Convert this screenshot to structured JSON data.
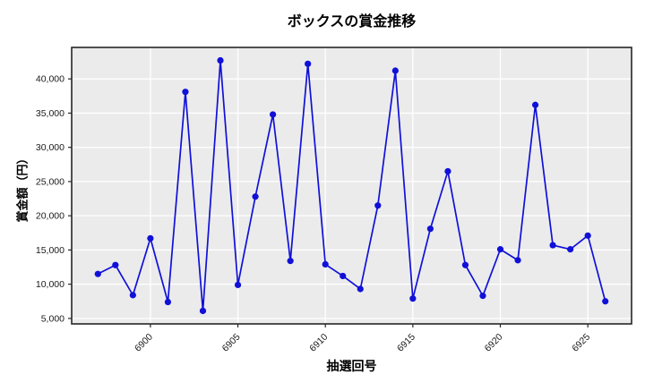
{
  "chart_data": {
    "type": "line",
    "title": "ボックスの賞金推移",
    "xlabel": "抽選回号",
    "ylabel": "賞金額（円）",
    "x": [
      6897,
      6898,
      6899,
      6900,
      6901,
      6902,
      6903,
      6904,
      6905,
      6906,
      6907,
      6908,
      6909,
      6910,
      6911,
      6912,
      6913,
      6914,
      6915,
      6916,
      6917,
      6918,
      6919,
      6920,
      6921,
      6922,
      6923,
      6924,
      6925,
      6926
    ],
    "values": [
      11500,
      12800,
      8400,
      16700,
      7400,
      38100,
      6100,
      42700,
      9900,
      22800,
      34800,
      13400,
      42200,
      12900,
      11200,
      9300,
      21500,
      41200,
      7900,
      18100,
      26500,
      12800,
      8300,
      15100,
      13500,
      36200,
      15700,
      15100,
      17100,
      7500
    ],
    "xticks": [
      6900,
      6905,
      6910,
      6915,
      6920,
      6925
    ],
    "yticks": [
      5000,
      10000,
      15000,
      20000,
      25000,
      30000,
      35000,
      40000
    ],
    "xlim": [
      6895.5,
      6927.5
    ],
    "ylim": [
      4200,
      44600
    ],
    "grid": true,
    "legend": "none",
    "colors": {
      "line": "#1010d9",
      "marker": "#1010d9",
      "plot_bg": "#ebebeb",
      "grid": "#ffffff",
      "spine": "#262626",
      "tick_label": "#1a1a1a",
      "figure_bg": "#ffffff"
    }
  }
}
